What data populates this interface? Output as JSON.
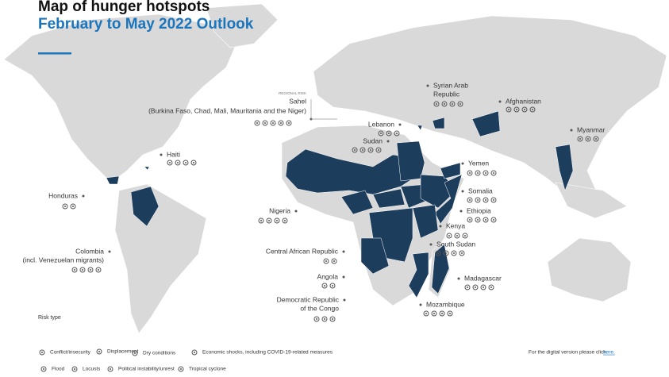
{
  "header": {
    "title": "Map of hunger hotspots",
    "subtitle": "February to May 2022 Outlook"
  },
  "hotspots": [
    {
      "note": "REGIONAL RISK",
      "label": [
        "Sahel"
      ],
      "detail": "(Burkina Faso, Chad, Mali, Mauritania and the Niger)"
    },
    {
      "label": [
        "Haiti"
      ]
    },
    {
      "label": [
        "Honduras"
      ]
    },
    {
      "label": [
        "Colombia",
        "(incl. Venezuelan migrants)"
      ]
    },
    {
      "label": [
        "Nigeria"
      ]
    },
    {
      "label": [
        "Central African Republic"
      ]
    },
    {
      "label": [
        "Angola"
      ]
    },
    {
      "label": [
        "Democratic Republic",
        "of the Congo"
      ]
    },
    {
      "label": [
        "Lebanon"
      ]
    },
    {
      "label": [
        "Sudan"
      ]
    },
    {
      "label": [
        "Syrian Arab",
        "Republic"
      ]
    },
    {
      "label": [
        "Afghanistan"
      ]
    },
    {
      "label": [
        "Myanmar"
      ]
    },
    {
      "label": [
        "Yemen"
      ]
    },
    {
      "label": [
        "Somalia"
      ]
    },
    {
      "label": [
        "Ethiopia"
      ]
    },
    {
      "label": [
        "Kenya"
      ]
    },
    {
      "label": [
        "South Sudan"
      ]
    },
    {
      "label": [
        "Madagascar"
      ]
    },
    {
      "label": [
        "Mozambique"
      ]
    }
  ],
  "legend": {
    "title": "Risk type",
    "items": [
      "Conflict/insecurity",
      "Displacement",
      "Dry conditions",
      "Economic shocks, including COVID-19-related measures",
      "Flood",
      "Locusts",
      "Political instability/unrest",
      "Tropical cyclone"
    ]
  },
  "footer": {
    "text": "For the digital version please click",
    "link": "here."
  }
}
